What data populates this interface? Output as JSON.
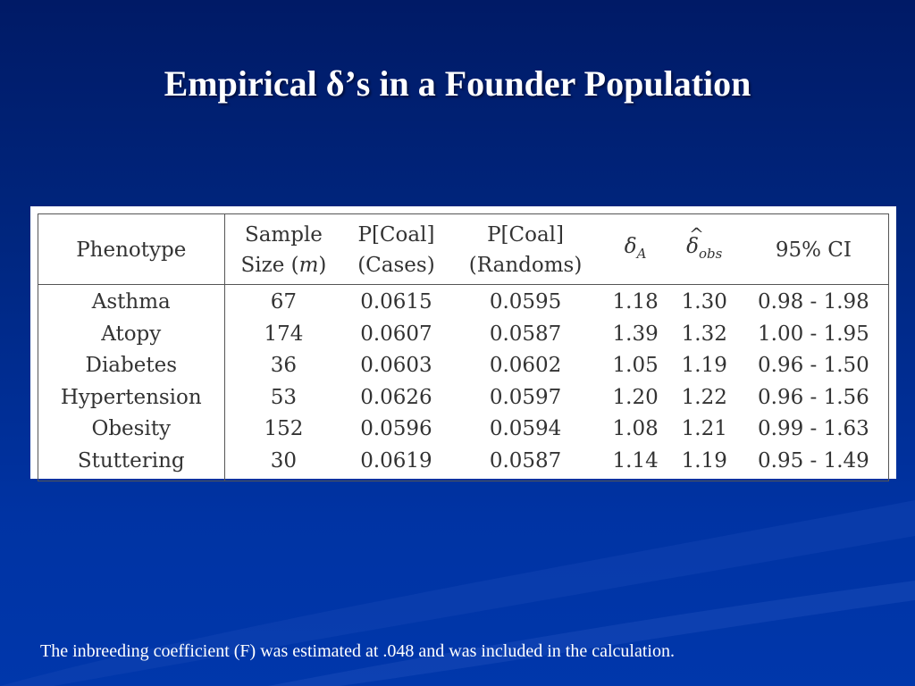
{
  "slide": {
    "title": "Empirical δ’s in a Founder Population",
    "footnote": "The inbreeding coefficient (F) was estimated at .048 and was included in the calculation."
  },
  "table": {
    "headers": {
      "phenotype": "Phenotype",
      "sample_size_line1": "Sample",
      "sample_size_line2_prefix": "Size (",
      "sample_size_var": "m",
      "sample_size_line2_suffix": ")",
      "pcoal_cases_line1": "P[Coal]",
      "pcoal_cases_line2": "(Cases)",
      "pcoal_randoms_line1": "P[Coal]",
      "pcoal_randoms_line2": "(Randoms)",
      "delta_a_symbol": "δ",
      "delta_a_sub": "A",
      "delta_obs_hat": "^",
      "delta_obs_symbol": "δ",
      "delta_obs_sub": "obs",
      "ci": "95% CI"
    },
    "rows": [
      {
        "phenotype": "Asthma",
        "sample_size": "67",
        "pcoal_cases": "0.0615",
        "pcoal_randoms": "0.0595",
        "delta_a": "1.18",
        "delta_obs": "1.30",
        "ci": "0.98 - 1.98"
      },
      {
        "phenotype": "Atopy",
        "sample_size": "174",
        "pcoal_cases": "0.0607",
        "pcoal_randoms": "0.0587",
        "delta_a": "1.39",
        "delta_obs": "1.32",
        "ci": "1.00 - 1.95"
      },
      {
        "phenotype": "Diabetes",
        "sample_size": "36",
        "pcoal_cases": "0.0603",
        "pcoal_randoms": "0.0602",
        "delta_a": "1.05",
        "delta_obs": "1.19",
        "ci": "0.96 - 1.50"
      },
      {
        "phenotype": "Hypertension",
        "sample_size": "53",
        "pcoal_cases": "0.0626",
        "pcoal_randoms": "0.0597",
        "delta_a": "1.20",
        "delta_obs": "1.22",
        "ci": "0.96 - 1.56"
      },
      {
        "phenotype": "Obesity",
        "sample_size": "152",
        "pcoal_cases": "0.0596",
        "pcoal_randoms": "0.0594",
        "delta_a": "1.08",
        "delta_obs": "1.21",
        "ci": "0.99 - 1.63"
      },
      {
        "phenotype": "Stuttering",
        "sample_size": "30",
        "pcoal_cases": "0.0619",
        "pcoal_randoms": "0.0587",
        "delta_a": "1.14",
        "delta_obs": "1.19",
        "ci": "0.95 - 1.49"
      }
    ]
  },
  "colors": {
    "background_top": "#001a66",
    "background_bottom": "#0037ab",
    "title_text": "#ffffff",
    "table_background": "#ffffff",
    "table_text": "#333333"
  }
}
